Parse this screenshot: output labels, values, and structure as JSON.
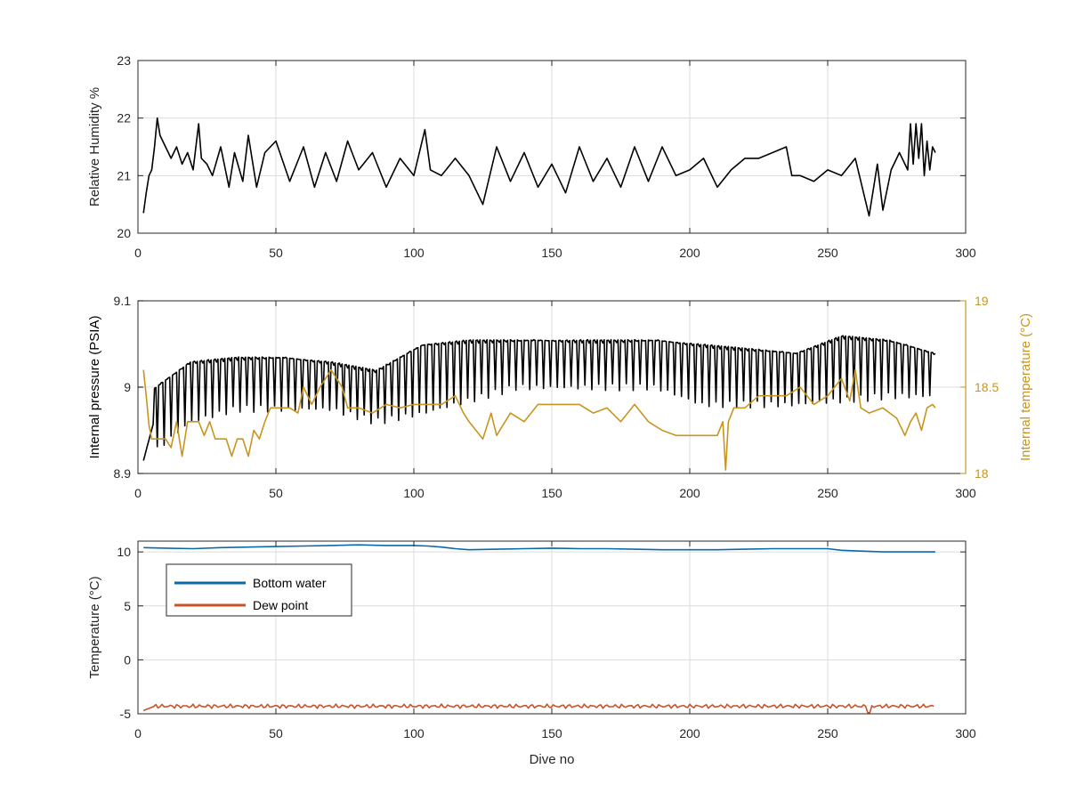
{
  "colors": {
    "black": "#000000",
    "gold": "#c8961e",
    "blue": "#0a6aa8",
    "orange": "#c8522a",
    "axis": "#262626",
    "grid": "#dcdcdc"
  },
  "xlabel_shared": "Dive no",
  "chart_data": [
    {
      "type": "line",
      "ylabel": "Relative Humidity %",
      "xlim": [
        0,
        300
      ],
      "ylim": [
        20,
        23
      ],
      "xticks": [
        0,
        50,
        100,
        150,
        200,
        250,
        300
      ],
      "yticks": [
        20,
        21,
        22,
        23
      ],
      "grid": true,
      "series": [
        {
          "color_key": "black",
          "x": [
            2,
            3,
            4,
            5,
            6,
            7,
            8,
            10,
            12,
            14,
            16,
            18,
            20,
            22,
            23,
            25,
            27,
            30,
            33,
            35,
            38,
            40,
            43,
            46,
            50,
            55,
            60,
            64,
            68,
            72,
            76,
            80,
            85,
            90,
            95,
            100,
            103,
            104,
            106,
            110,
            115,
            120,
            125,
            130,
            135,
            140,
            145,
            150,
            155,
            160,
            165,
            170,
            175,
            180,
            185,
            190,
            195,
            200,
            205,
            210,
            215,
            220,
            225,
            230,
            235,
            237,
            240,
            245,
            250,
            255,
            260,
            263,
            265,
            268,
            270,
            273,
            276,
            279,
            280,
            281,
            282,
            283,
            284,
            285,
            286,
            287,
            288,
            289
          ],
          "y": [
            20.35,
            20.7,
            21.0,
            21.1,
            21.5,
            22.0,
            21.7,
            21.5,
            21.3,
            21.5,
            21.2,
            21.4,
            21.1,
            21.9,
            21.3,
            21.2,
            21.0,
            21.5,
            20.8,
            21.4,
            20.9,
            21.7,
            20.8,
            21.4,
            21.6,
            20.9,
            21.5,
            20.8,
            21.4,
            20.9,
            21.6,
            21.1,
            21.4,
            20.8,
            21.3,
            21.0,
            21.6,
            21.8,
            21.1,
            21.0,
            21.3,
            21.0,
            20.5,
            21.5,
            20.9,
            21.4,
            20.8,
            21.2,
            20.7,
            21.5,
            20.9,
            21.3,
            20.8,
            21.5,
            20.9,
            21.5,
            21.0,
            21.1,
            21.3,
            20.8,
            21.1,
            21.3,
            21.3,
            21.4,
            21.5,
            21.0,
            21.0,
            20.9,
            21.1,
            21.0,
            21.3,
            20.7,
            20.3,
            21.2,
            20.4,
            21.1,
            21.4,
            21.1,
            21.9,
            21.2,
            21.9,
            21.3,
            21.9,
            21.0,
            21.6,
            21.1,
            21.5,
            21.4
          ]
        }
      ]
    },
    {
      "type": "line",
      "ylabel": "Internal pressure (PSIA)",
      "ylabel_right": "Internal temperature (°C)",
      "xlim": [
        0,
        300
      ],
      "ylim": [
        8.9,
        9.1
      ],
      "ylim_right": [
        18,
        19
      ],
      "xticks": [
        0,
        50,
        100,
        150,
        200,
        250,
        300
      ],
      "yticks": [
        8.9,
        9,
        9.1
      ],
      "yticks_right": [
        18,
        18.5,
        19
      ],
      "ytick_labels": [
        "8.9",
        "9",
        "9.1"
      ],
      "ytick_labels_right": [
        "18",
        "18.5",
        "19"
      ],
      "grid": true,
      "series": [
        {
          "color_key": "black",
          "axis": "left",
          "x_start": 2,
          "x_end": 289,
          "baseline": [
            8.915,
            8.96,
            8.975,
            8.975,
            8.975,
            8.96,
            8.97,
            8.985,
            9.0,
            9.0,
            9.0,
            9.0,
            8.98,
            8.98,
            8.98,
            8.985,
            8.99,
            8.99
          ],
          "peak": [
            8.99,
            9.03,
            9.035,
            9.035,
            9.03,
            9.02,
            9.05,
            9.055,
            9.055,
            9.055,
            9.055,
            9.055,
            9.05,
            9.045,
            9.04,
            9.06,
            9.055,
            9.04
          ],
          "note": ""
        },
        {
          "color_key": "gold",
          "axis": "right",
          "x": [
            2,
            3,
            4,
            5,
            8,
            10,
            12,
            14,
            16,
            18,
            20,
            22,
            24,
            26,
            28,
            30,
            32,
            34,
            36,
            38,
            40,
            42,
            44,
            46,
            48,
            50,
            55,
            58,
            60,
            63,
            66,
            70,
            74,
            76,
            80,
            85,
            90,
            95,
            100,
            105,
            110,
            115,
            118,
            120,
            125,
            128,
            130,
            135,
            140,
            145,
            150,
            155,
            160,
            165,
            170,
            175,
            180,
            185,
            190,
            195,
            200,
            205,
            210,
            212,
            213,
            214,
            216,
            220,
            225,
            230,
            235,
            240,
            245,
            250,
            255,
            258,
            260,
            262,
            265,
            270,
            275,
            278,
            280,
            282,
            284,
            286,
            288,
            289
          ],
          "y": [
            18.6,
            18.45,
            18.28,
            18.2,
            18.2,
            18.2,
            18.15,
            18.3,
            18.1,
            18.3,
            18.3,
            18.3,
            18.22,
            18.3,
            18.2,
            18.2,
            18.2,
            18.1,
            18.2,
            18.2,
            18.1,
            18.25,
            18.2,
            18.3,
            18.38,
            18.38,
            18.38,
            18.35,
            18.5,
            18.4,
            18.5,
            18.6,
            18.5,
            18.38,
            18.38,
            18.35,
            18.4,
            18.38,
            18.4,
            18.4,
            18.4,
            18.45,
            18.35,
            18.3,
            18.2,
            18.35,
            18.22,
            18.35,
            18.3,
            18.4,
            18.4,
            18.4,
            18.4,
            18.35,
            18.38,
            18.3,
            18.4,
            18.3,
            18.25,
            18.22,
            18.22,
            18.22,
            18.22,
            18.3,
            18.02,
            18.3,
            18.38,
            18.38,
            18.45,
            18.45,
            18.45,
            18.5,
            18.4,
            18.45,
            18.55,
            18.42,
            18.6,
            18.38,
            18.35,
            18.38,
            18.32,
            18.22,
            18.3,
            18.35,
            18.25,
            18.38,
            18.4,
            18.38
          ]
        }
      ]
    },
    {
      "type": "line",
      "ylabel": "Temperature (°C)",
      "xlabel": "Dive no",
      "xlim": [
        0,
        300
      ],
      "ylim": [
        -5,
        11
      ],
      "xticks": [
        0,
        50,
        100,
        150,
        200,
        250,
        300
      ],
      "yticks": [
        -5,
        0,
        5,
        10
      ],
      "grid": true,
      "legend": "top-left",
      "series": [
        {
          "name": "Bottom water",
          "color_key": "blue",
          "x": [
            2,
            10,
            20,
            30,
            40,
            50,
            60,
            70,
            80,
            90,
            100,
            105,
            110,
            115,
            120,
            130,
            140,
            150,
            160,
            170,
            180,
            190,
            200,
            210,
            220,
            230,
            240,
            250,
            255,
            260,
            270,
            280,
            289
          ],
          "y": [
            10.4,
            10.35,
            10.3,
            10.4,
            10.45,
            10.5,
            10.55,
            10.6,
            10.65,
            10.6,
            10.6,
            10.55,
            10.45,
            10.3,
            10.2,
            10.25,
            10.3,
            10.35,
            10.3,
            10.3,
            10.25,
            10.2,
            10.2,
            10.2,
            10.25,
            10.3,
            10.3,
            10.3,
            10.15,
            10.1,
            10.0,
            10.0,
            10.0
          ]
        },
        {
          "name": "Dew point",
          "color_key": "orange",
          "x_start": 2,
          "x_end": 289,
          "level": -4.3,
          "level_start": -4.7,
          "dip_x": 265,
          "dip_y": -4.9
        }
      ]
    }
  ]
}
